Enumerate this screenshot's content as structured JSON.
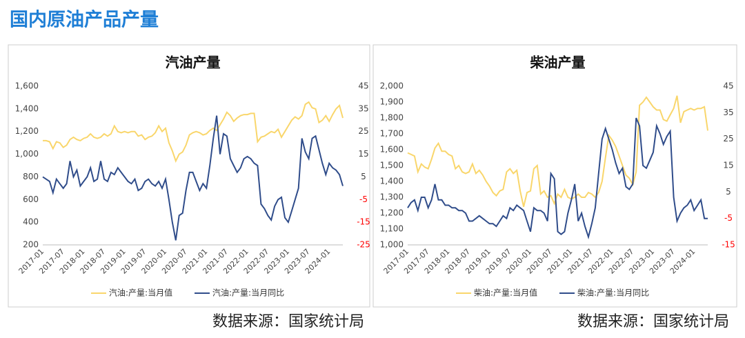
{
  "page_title": "国内原油产品产量",
  "chart_data": [
    {
      "type": "line",
      "title": "汽油产量",
      "source": "数据来源：国家统计局",
      "categories": [
        "2017-01",
        null,
        null,
        null,
        null,
        null,
        "2017-07",
        null,
        null,
        null,
        null,
        null,
        "2018-01",
        null,
        null,
        null,
        null,
        null,
        "2018-07",
        null,
        null,
        null,
        null,
        null,
        "2019-01",
        null,
        null,
        null,
        null,
        null,
        "2019-07",
        null,
        null,
        null,
        null,
        null,
        "2020-01",
        null,
        null,
        null,
        null,
        null,
        "2020-07",
        null,
        null,
        null,
        null,
        null,
        "2021-01",
        null,
        null,
        null,
        null,
        null,
        "2021-07",
        null,
        null,
        null,
        null,
        null,
        "2022-01",
        null,
        null,
        null,
        null,
        null,
        "2022-07",
        null,
        null,
        null,
        null,
        null,
        "2023-01",
        null,
        null,
        null,
        null,
        null,
        "2023-07",
        null,
        null,
        null,
        null,
        null,
        "2024-01",
        null,
        null,
        null,
        null
      ],
      "series": [
        {
          "name": "汽油:产量:当月值",
          "color": "#f9d66b",
          "values": [
            1120,
            1120,
            1110,
            1050,
            1110,
            1100,
            1060,
            1080,
            1130,
            1150,
            1130,
            1120,
            1140,
            1150,
            1180,
            1150,
            1140,
            1150,
            1180,
            1160,
            1180,
            1250,
            1200,
            1190,
            1200,
            1190,
            1200,
            1200,
            1160,
            1170,
            1130,
            1150,
            1160,
            1190,
            1250,
            1200,
            1230,
            1100,
            1030,
            940,
            1000,
            1020,
            1080,
            1170,
            1190,
            1200,
            1190,
            1170,
            1180,
            1210,
            1230,
            1210,
            1260,
            1310,
            1370,
            1340,
            1290,
            1320,
            1340,
            1350,
            1350,
            1360,
            1360,
            1110,
            1150,
            1160,
            1180,
            1200,
            1190,
            1220,
            1150,
            1200,
            1250,
            1300,
            1330,
            1310,
            1340,
            1440,
            1460,
            1410,
            1400,
            1280,
            1300,
            1340,
            1290,
            1350,
            1400,
            1430,
            1320
          ]
        },
        {
          "name": "汽油:产量:当月同比",
          "color": "#2f4c8a",
          "axis": "y2",
          "values": [
            5,
            4,
            3,
            -2,
            4,
            2,
            0,
            2,
            12,
            5,
            8,
            1,
            3,
            5,
            9,
            3,
            4,
            12,
            4,
            3,
            7,
            6,
            9,
            7,
            5,
            3,
            2,
            4,
            -1,
            0,
            3,
            4,
            2,
            1,
            3,
            0,
            4,
            -5,
            -15,
            -23,
            -12,
            -11,
            -1,
            7,
            7,
            3,
            -1,
            2,
            0,
            10,
            22,
            32,
            15,
            24,
            23,
            13,
            10,
            7,
            9,
            13,
            14,
            13,
            11,
            10,
            -7,
            -9,
            -12,
            -14,
            -8,
            -5,
            -4,
            -13,
            -15,
            -10,
            -5,
            0,
            22,
            16,
            13,
            22,
            23,
            17,
            11,
            6,
            11,
            9,
            8,
            6,
            1
          ]
        }
      ],
      "ylim": [
        200,
        1600
      ],
      "yticks": [
        200,
        400,
        600,
        800,
        {
          "value": 1000,
          "label": "1,000"
        },
        {
          "value": 1200,
          "label": "1,200"
        },
        {
          "value": 1400,
          "label": "1,400"
        },
        {
          "value": 1600,
          "label": "1,600"
        }
      ],
      "y2lim": [
        -25,
        45
      ],
      "y2ticks": [
        -25,
        -15,
        -5,
        5,
        15,
        25,
        35,
        45
      ],
      "y2_negative_color": "#ff0000",
      "legend": "bottom"
    },
    {
      "type": "line",
      "title": "柴油产量",
      "source": "数据来源：国家统计局",
      "categories": [
        "2017-01",
        null,
        null,
        null,
        null,
        null,
        "2017-07",
        null,
        null,
        null,
        null,
        null,
        "2018-01",
        null,
        null,
        null,
        null,
        null,
        "2018-07",
        null,
        null,
        null,
        null,
        null,
        "2019-01",
        null,
        null,
        null,
        null,
        null,
        "2019-07",
        null,
        null,
        null,
        null,
        null,
        "2020-01",
        null,
        null,
        null,
        null,
        null,
        "2020-07",
        null,
        null,
        null,
        null,
        null,
        "2021-01",
        null,
        null,
        null,
        null,
        null,
        "2021-07",
        null,
        null,
        null,
        null,
        null,
        "2022-01",
        null,
        null,
        null,
        null,
        null,
        "2022-07",
        null,
        null,
        null,
        null,
        null,
        "2023-01",
        null,
        null,
        null,
        null,
        null,
        "2023-07",
        null,
        null,
        null,
        null,
        null,
        "2024-01",
        null,
        null,
        null,
        null
      ],
      "series": [
        {
          "name": "柴油:产量:当月值",
          "color": "#f9d66b",
          "values": [
            1580,
            1570,
            1560,
            1460,
            1510,
            1490,
            1480,
            1540,
            1610,
            1640,
            1590,
            1590,
            1570,
            1560,
            1480,
            1500,
            1460,
            1450,
            1460,
            1510,
            1450,
            1470,
            1440,
            1400,
            1370,
            1330,
            1310,
            1340,
            1350,
            1460,
            1480,
            1450,
            1470,
            1340,
            1240,
            1330,
            1340,
            1480,
            1500,
            1320,
            1340,
            1300,
            1310,
            1260,
            1320,
            1300,
            1350,
            1300,
            1290,
            1300,
            1320,
            1300,
            1300,
            1330,
            1320,
            1300,
            1330,
            1400,
            1550,
            1690,
            1660,
            1620,
            1560,
            1500,
            1440,
            1420,
            1380,
            1460,
            1880,
            1900,
            1930,
            1900,
            1870,
            1850,
            1850,
            1790,
            1780,
            1820,
            1860,
            1940,
            1770,
            1840,
            1850,
            1860,
            1850,
            1860,
            1860,
            1870,
            1720
          ]
        },
        {
          "name": "柴油:产量:当月同比",
          "color": "#2f4c8a",
          "axis": "y2",
          "values": [
            -1,
            1,
            2,
            -2,
            3,
            3,
            -1,
            2,
            8,
            2,
            2,
            0,
            0,
            -1,
            -1,
            -2,
            -2,
            -3,
            -6,
            -6,
            -5,
            -4,
            -5,
            -6,
            -7,
            -7,
            -8,
            -6,
            -4,
            -5,
            -1,
            -2,
            0,
            -1,
            -2,
            -6,
            -10,
            -1,
            -2,
            -2,
            -3,
            -6,
            12,
            10,
            -10,
            -11,
            -10,
            -3,
            2,
            8,
            -6,
            -3,
            -8,
            -12,
            -7,
            -1,
            12,
            25,
            29,
            25,
            21,
            16,
            12,
            14,
            7,
            6,
            8,
            33,
            30,
            15,
            14,
            17,
            20,
            30,
            27,
            23,
            26,
            28,
            3,
            -6,
            -3,
            -1,
            0,
            2,
            -2,
            0,
            2,
            -5,
            -5
          ]
        }
      ],
      "ylim": [
        1000,
        2000
      ],
      "yticks": [
        {
          "value": 1000,
          "label": "1,000"
        },
        {
          "value": 1100,
          "label": "1,100"
        },
        {
          "value": 1200,
          "label": "1,200"
        },
        {
          "value": 1300,
          "label": "1,300"
        },
        {
          "value": 1400,
          "label": "1,400"
        },
        {
          "value": 1500,
          "label": "1,500"
        },
        {
          "value": 1600,
          "label": "1,600"
        },
        {
          "value": 1700,
          "label": "1,700"
        },
        {
          "value": 1800,
          "label": "1,800"
        },
        {
          "value": 1900,
          "label": "1,900"
        },
        {
          "value": 2000,
          "label": "2,000"
        }
      ],
      "y2lim": [
        -15,
        45
      ],
      "y2ticks": [
        -15,
        -5,
        5,
        15,
        25,
        35,
        45
      ],
      "y2_negative_color": "#ff0000",
      "legend": "bottom"
    }
  ]
}
